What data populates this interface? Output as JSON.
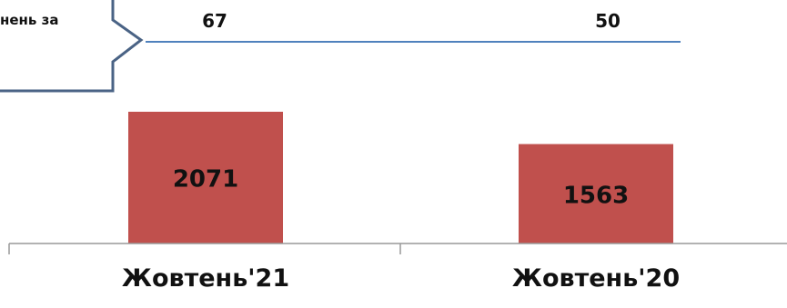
{
  "callout": {
    "text": "нень за"
  },
  "chart_data": {
    "type": "bar",
    "title": "",
    "xlabel": "",
    "ylabel": "",
    "categories": [
      "Жовтень'21",
      "Жовтень'20"
    ],
    "series": [
      {
        "values": [
          2071,
          1563
        ],
        "color": "#c0504d"
      }
    ],
    "line_series": [
      {
        "values": [
          67,
          50
        ],
        "color": "#4f81bd"
      }
    ],
    "data_labels": true,
    "grid": false,
    "legend": "none"
  }
}
